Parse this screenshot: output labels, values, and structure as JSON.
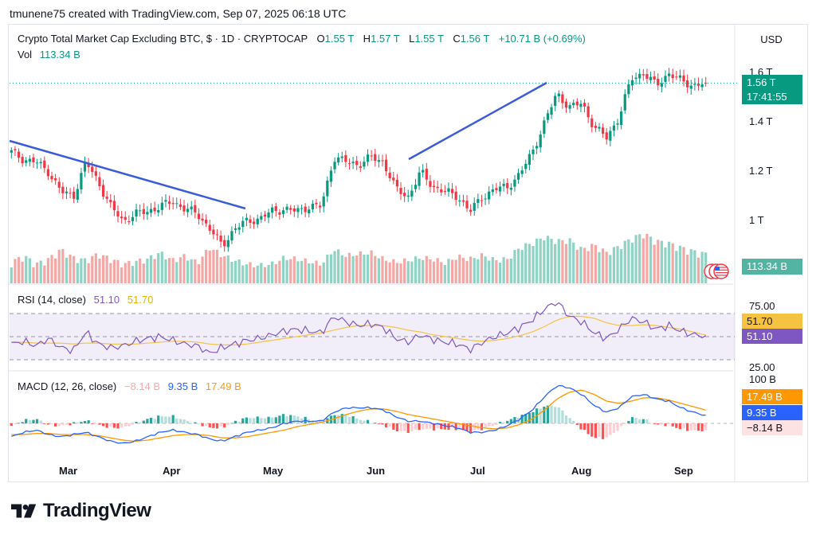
{
  "caption": "tmunene75 created with TradingView.com, Sep 07, 2025 06:18 UTC",
  "header": {
    "symbol": "Crypto Total Market Cap Excluding BTC, $ · 1D · CRYPTOCAP",
    "o_label": "O",
    "o_value": "1.55 T",
    "h_label": "H",
    "h_value": "1.57 T",
    "l_label": "L",
    "l_value": "1.55 T",
    "c_label": "C",
    "c_value": "1.56 T",
    "change": "+10.71 B (+0.69%)",
    "vol_label": "Vol",
    "vol_value": "113.34 B"
  },
  "currency_button": "USD",
  "price_axis": [
    "1.6 T",
    "1.4 T",
    "1.2 T",
    "1 T"
  ],
  "price_badge": {
    "value": "1.56 T",
    "countdown": "17:41:55"
  },
  "volume_badge": "113.34 B",
  "rsi": {
    "label": "RSI (14, close)",
    "value": "51.10",
    "ma_value": "51.70",
    "ticks": [
      "75.00",
      "25.00"
    ]
  },
  "macd": {
    "label": "MACD (12, 26, close)",
    "hist": "−8.14 B",
    "macd": "9.35 B",
    "signal": "17.49 B",
    "top_tick": "100 B"
  },
  "x_axis": [
    "Mar",
    "Apr",
    "May",
    "Jun",
    "Jul",
    "Aug",
    "Sep"
  ],
  "brand": "TradingView",
  "colors": {
    "up": "#089981",
    "down": "#f23645",
    "trend": "#3b5bdb",
    "rsi": "#7e57c2",
    "rsi_ma": "#f5c242",
    "macd": "#2962ff",
    "signal": "#ff9800"
  },
  "chart_data": [
    {
      "type": "candlestick",
      "title": "Crypto Total Market Cap Excluding BTC, $ · 1D · CRYPTOCAP",
      "ylabel": "",
      "ylim": [
        0.9,
        1.7
      ],
      "x_ticks": [
        "Mar",
        "Apr",
        "May",
        "Jun",
        "Jul",
        "Aug",
        "Sep"
      ],
      "y_ticks": [
        1.0,
        1.2,
        1.4,
        1.6
      ],
      "y_unit": "T",
      "close_path": [
        1.28,
        1.25,
        1.24,
        1.2,
        1.12,
        1.1,
        1.24,
        1.16,
        1.06,
        1.0,
        1.03,
        1.04,
        1.06,
        1.08,
        1.05,
        1.03,
        0.97,
        0.9,
        0.97,
        1.0,
        1.01,
        1.04,
        1.05,
        1.04,
        1.06,
        1.06,
        1.26,
        1.24,
        1.23,
        1.26,
        1.24,
        1.13,
        1.1,
        1.2,
        1.14,
        1.12,
        1.1,
        1.04,
        1.1,
        1.13,
        1.14,
        1.19,
        1.28,
        1.4,
        1.52,
        1.46,
        1.48,
        1.38,
        1.34,
        1.42,
        1.58,
        1.6,
        1.55,
        1.6,
        1.57,
        1.55,
        1.56
      ],
      "last": 1.56,
      "trendlines": [
        {
          "from": [
            "Feb",
            1.33
          ],
          "to": [
            "Apr",
            1.04
          ]
        },
        {
          "from": [
            "Jun",
            1.25
          ],
          "to": [
            "Jul",
            1.56
          ]
        }
      ]
    },
    {
      "type": "bar",
      "title": "Vol",
      "last_value": "113.34 B",
      "relative_values": [
        0.25,
        0.35,
        0.22,
        0.3,
        0.45,
        0.32,
        0.28,
        0.38,
        0.3,
        0.22,
        0.26,
        0.3,
        0.4,
        0.28,
        0.35,
        0.24,
        0.48,
        0.36,
        0.28,
        0.22,
        0.2,
        0.22,
        0.32,
        0.3,
        0.26,
        0.22,
        0.45,
        0.35,
        0.38,
        0.4,
        0.3,
        0.25,
        0.28,
        0.32,
        0.3,
        0.24,
        0.34,
        0.3,
        0.36,
        0.28,
        0.3,
        0.48,
        0.55,
        0.65,
        0.58,
        0.6,
        0.45,
        0.52,
        0.4,
        0.5,
        0.62,
        0.7,
        0.58,
        0.55,
        0.48,
        0.42,
        0.38
      ]
    },
    {
      "type": "line",
      "title": "RSI (14, close)",
      "ylim": [
        25,
        75
      ],
      "y_ticks": [
        25,
        75
      ],
      "series": [
        {
          "name": "RSI",
          "last": 51.1,
          "values": [
            42,
            45,
            40,
            48,
            38,
            35,
            55,
            42,
            38,
            40,
            45,
            48,
            50,
            46,
            42,
            40,
            32,
            38,
            42,
            46,
            48,
            52,
            56,
            58,
            56,
            54,
            72,
            66,
            62,
            64,
            60,
            48,
            44,
            52,
            47,
            44,
            42,
            36,
            44,
            50,
            54,
            60,
            68,
            80,
            88,
            72,
            66,
            54,
            48,
            58,
            70,
            66,
            58,
            62,
            56,
            52,
            51.1
          ]
        },
        {
          "name": "RSI-based MA",
          "last": 51.7,
          "values": [
            44,
            44,
            43,
            43,
            43,
            42,
            43,
            43,
            42,
            42,
            42,
            43,
            44,
            45,
            45,
            44,
            42,
            41,
            41,
            42,
            44,
            46,
            48,
            50,
            52,
            54,
            57,
            60,
            62,
            62,
            62,
            60,
            57,
            55,
            52,
            50,
            48,
            46,
            45,
            46,
            48,
            51,
            55,
            61,
            68,
            72,
            72,
            70,
            65,
            62,
            62,
            63,
            62,
            60,
            58,
            55,
            51.7
          ]
        }
      ]
    },
    {
      "type": "line",
      "title": "MACD (12, 26, close)",
      "y_ticks": [
        100
      ],
      "y_unit": "B",
      "series": [
        {
          "name": "Histogram",
          "last": -8.14
        },
        {
          "name": "MACD",
          "last": 9.35
        },
        {
          "name": "Signal",
          "last": 17.49
        }
      ],
      "relative_macd": [
        -0.6,
        -0.4,
        -0.3,
        -0.5,
        -0.6,
        -0.5,
        -0.4,
        -0.6,
        -0.8,
        -0.9,
        -0.8,
        -0.6,
        -0.4,
        -0.3,
        -0.4,
        -0.5,
        -0.7,
        -0.8,
        -0.6,
        -0.4,
        -0.3,
        -0.2,
        0.0,
        0.1,
        0.1,
        0.1,
        0.5,
        0.7,
        0.7,
        0.7,
        0.6,
        0.3,
        0.1,
        0.1,
        0.0,
        -0.1,
        -0.2,
        -0.4,
        -0.4,
        -0.3,
        -0.1,
        0.2,
        0.6,
        1.2,
        1.7,
        1.6,
        1.3,
        0.8,
        0.5,
        0.7,
        1.2,
        1.3,
        1.1,
        1.0,
        0.7,
        0.5,
        0.35
      ],
      "relative_signal": [
        -0.5,
        -0.5,
        -0.45,
        -0.45,
        -0.5,
        -0.5,
        -0.5,
        -0.55,
        -0.65,
        -0.75,
        -0.8,
        -0.75,
        -0.65,
        -0.55,
        -0.5,
        -0.5,
        -0.55,
        -0.65,
        -0.65,
        -0.6,
        -0.5,
        -0.4,
        -0.3,
        -0.15,
        -0.05,
        0.05,
        0.2,
        0.4,
        0.55,
        0.65,
        0.65,
        0.55,
        0.4,
        0.3,
        0.2,
        0.1,
        0.0,
        -0.1,
        -0.2,
        -0.25,
        -0.2,
        -0.05,
        0.2,
        0.6,
        1.1,
        1.4,
        1.5,
        1.3,
        1.0,
        0.9,
        1.0,
        1.15,
        1.15,
        1.05,
        0.9,
        0.75,
        0.6
      ]
    }
  ]
}
